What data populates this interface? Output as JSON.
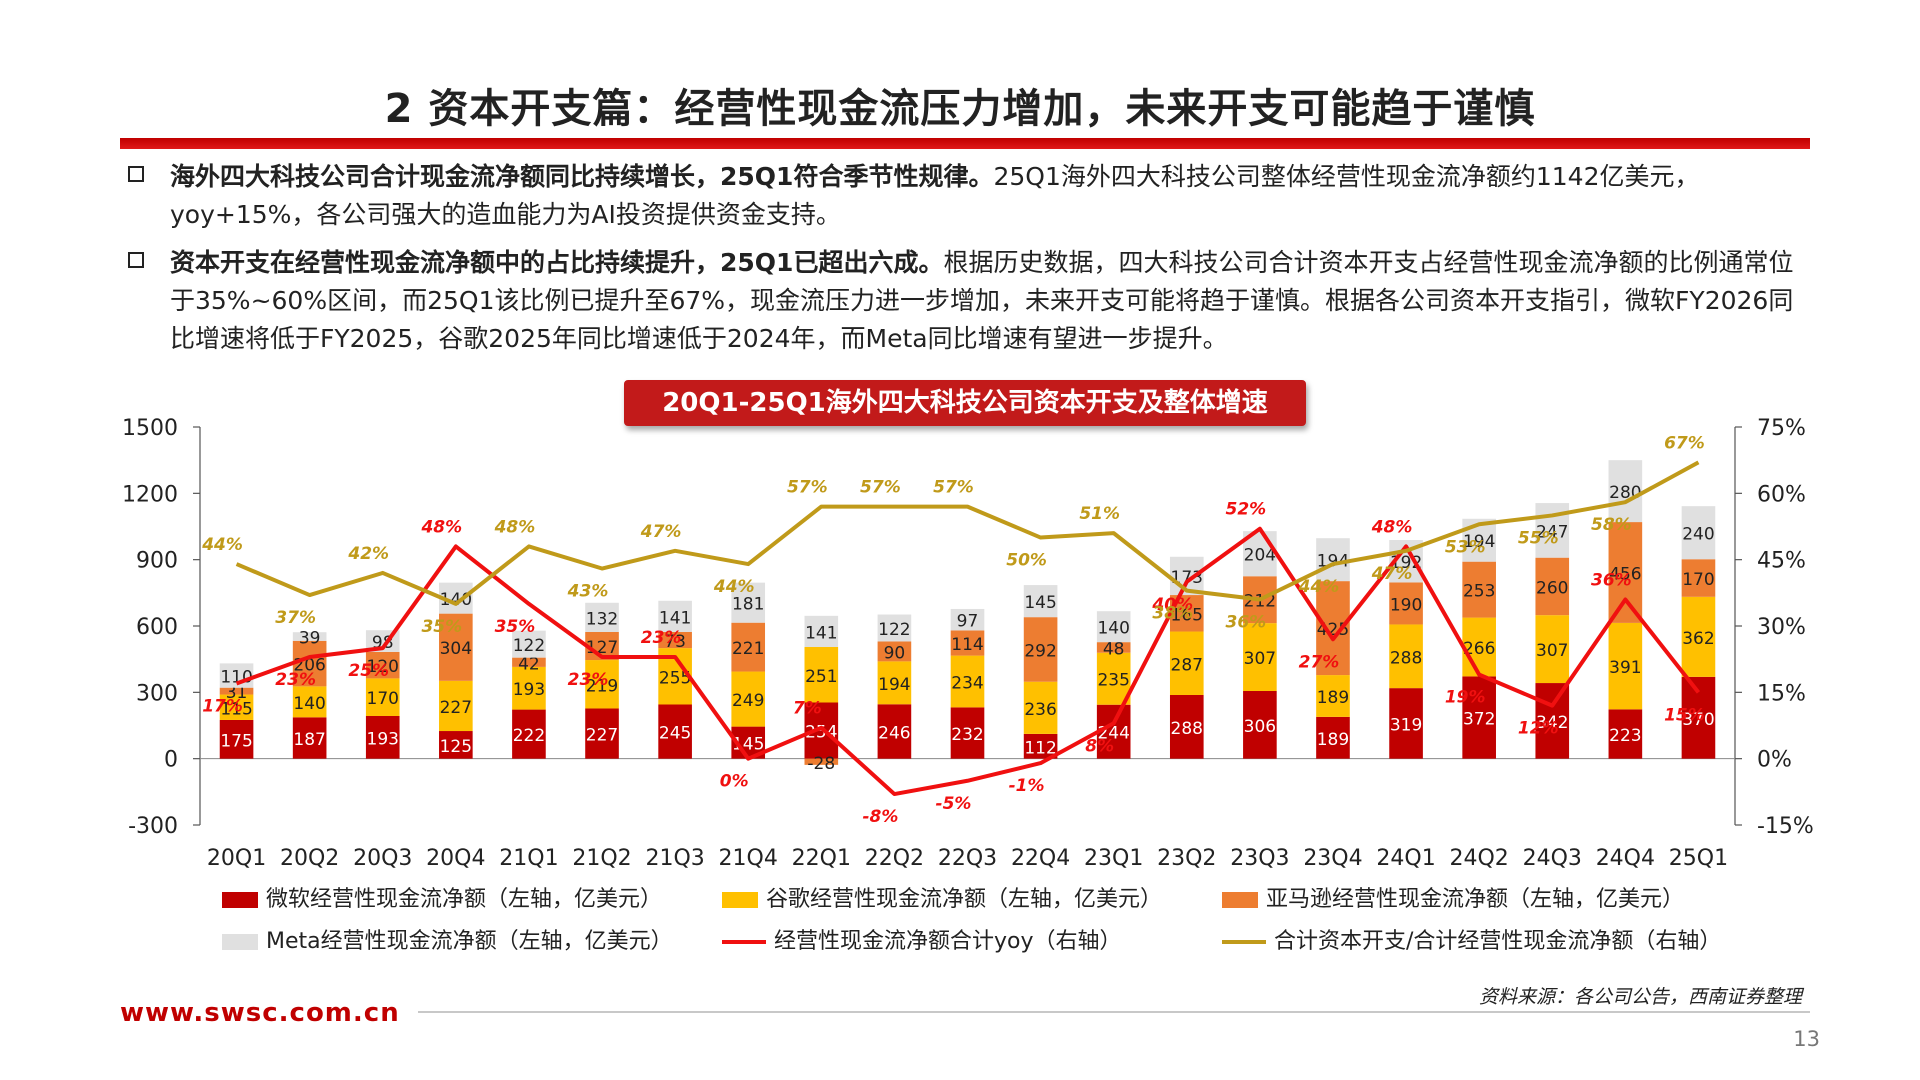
{
  "page": {
    "title": "2 资本开支篇：经营性现金流压力增加，未来开支可能趋于谨慎",
    "bullets": [
      {
        "bold": "海外四大科技公司合计现金流净额同比持续增长，25Q1符合季节性规律。",
        "text": "25Q1海外四大科技公司整体经营性现金流净额约1142亿美元，yoy+15%，各公司强大的造血能力为AI投资提供资金支持。"
      },
      {
        "bold": "资本开支在经营性现金流净额中的占比持续提升，25Q1已超出六成。",
        "text": "根据历史数据，四大科技公司合计资本开支占经营性现金流净额的比例通常位于35%~60%区间，而25Q1该比例已提升至67%，现金流压力进一步增加，未来开支可能将趋于谨慎。根据各公司资本开支指引，微软FY2026同比增速将低于FY2025，谷歌2025年同比增速低于2024年，而Meta同比增速有望进一步提升。"
      }
    ],
    "source": "资料来源：各公司公告，西南证券整理",
    "footer_url": "www.swsc.com.cn",
    "page_number": "13"
  },
  "chart_data": {
    "type": "bar",
    "stacked": true,
    "title": "20Q1-25Q1海外四大科技公司资本开支及整体增速",
    "categories": [
      "20Q1",
      "20Q2",
      "20Q3",
      "20Q4",
      "21Q1",
      "21Q2",
      "21Q3",
      "21Q4",
      "22Q1",
      "22Q2",
      "22Q3",
      "22Q4",
      "23Q1",
      "23Q2",
      "23Q3",
      "23Q4",
      "24Q1",
      "24Q2",
      "24Q3",
      "24Q4",
      "25Q1"
    ],
    "y_left": {
      "min": -300,
      "max": 1500,
      "ticks": [
        -300,
        0,
        300,
        600,
        900,
        1200,
        1500
      ]
    },
    "y_right": {
      "min": -15,
      "max": 75,
      "ticks": [
        "-15%",
        "0%",
        "15%",
        "30%",
        "45%",
        "60%",
        "75%"
      ]
    },
    "series": [
      {
        "name": "微软经营性现金流净额（左轴，亿美元）",
        "axis": "left",
        "color": "#c00000",
        "values": [
          175,
          187,
          193,
          125,
          222,
          227,
          245,
          145,
          254,
          246,
          232,
          112,
          244,
          288,
          306,
          189,
          319,
          372,
          342,
          223,
          370
        ]
      },
      {
        "name": "谷歌经营性现金流净额（左轴，亿美元）",
        "axis": "left",
        "color": "#ffc000",
        "values": [
          115,
          140,
          170,
          227,
          193,
          219,
          255,
          249,
          251,
          194,
          234,
          236,
          235,
          287,
          307,
          189,
          288,
          266,
          307,
          391,
          362
        ]
      },
      {
        "name": "亚马逊经营性现金流净额（左轴，亿美元）",
        "axis": "left",
        "color": "#ed7d31",
        "values": [
          31,
          206,
          120,
          304,
          42,
          127,
          73,
          221,
          -28,
          90,
          114,
          292,
          48,
          165,
          212,
          425,
          190,
          253,
          260,
          456,
          170
        ]
      },
      {
        "name": "Meta经营性现金流净额（左轴，亿美元）",
        "axis": "left",
        "color": "#e0e0e0",
        "values": [
          110,
          39,
          98,
          140,
          122,
          132,
          141,
          181,
          141,
          122,
          97,
          145,
          140,
          173,
          204,
          194,
          192,
          194,
          247,
          280,
          240
        ]
      },
      {
        "name": "经营性现金流净额合计yoy（右轴）",
        "axis": "right",
        "type": "line",
        "color": "#f01010",
        "values": [
          17,
          23,
          25,
          48,
          35,
          23,
          23,
          0,
          7,
          -8,
          -5,
          -1,
          8,
          40,
          52,
          27,
          48,
          19,
          12,
          36,
          15
        ],
        "labels": [
          "17%",
          "23%",
          "25%",
          "48%",
          "35%",
          "23%",
          "23%",
          "0%",
          "7%",
          "-8%",
          "-5%",
          "-1%",
          "8%",
          "40%",
          "52%",
          "27%",
          "48%",
          "19%",
          "12%",
          "36%",
          "15%"
        ]
      },
      {
        "name": "合计资本开支/合计经营性现金流净额（右轴）",
        "axis": "right",
        "type": "line",
        "color": "#c09a1a",
        "values": [
          44,
          37,
          42,
          35,
          48,
          43,
          47,
          44,
          57,
          57,
          57,
          50,
          51,
          38,
          36,
          44,
          47,
          53,
          55,
          58,
          67
        ],
        "labels": [
          "44%",
          "37%",
          "42%",
          "35%",
          "48%",
          "43%",
          "47%",
          "44%",
          "57%",
          "57%",
          "57%",
          "50%",
          "51%",
          "38%",
          "36%",
          "44%",
          "47%",
          "53%",
          "55%",
          "58%",
          "67%"
        ]
      }
    ]
  }
}
